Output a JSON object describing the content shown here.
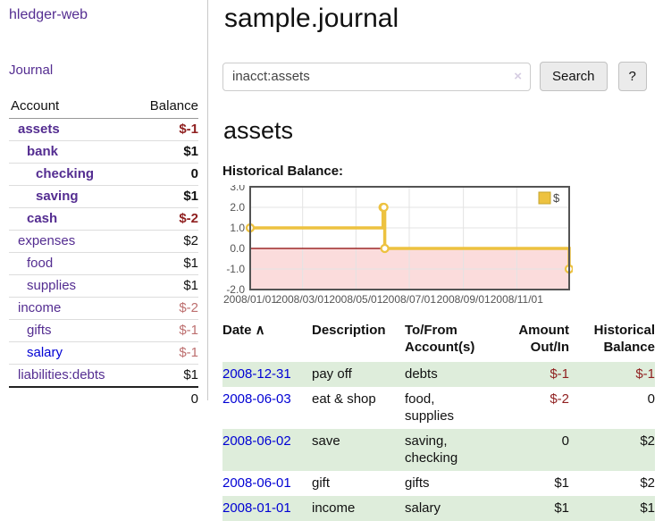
{
  "app": {
    "title": "hledger-web",
    "nav_journal": "Journal"
  },
  "colors": {
    "accent_purple": "#542d91",
    "link_blue": "#0000d4",
    "negative_strong": "#8f1f1f",
    "negative_soft": "#bd6f6f",
    "row_shade_green": "#deeddb",
    "series_yellow": "#edc240",
    "legend_swatch_border": "#c5a42e",
    "negative_region_pink": "#fbdcdc",
    "zero_line": "#8b0000",
    "chart_frame": "#545454",
    "grid_line": "#e3e3e3",
    "tick_text": "#545454"
  },
  "sidebar": {
    "headers": {
      "account": "Account",
      "balance": "Balance"
    },
    "accounts": [
      {
        "label": "assets",
        "level": 1,
        "bold": true,
        "link_color": "purple",
        "balance": "$-1",
        "balance_class": "neg-strong"
      },
      {
        "label": "bank",
        "level": 2,
        "bold": true,
        "link_color": "purple",
        "balance": "$1",
        "balance_class": "pos"
      },
      {
        "label": "checking",
        "level": 3,
        "bold": true,
        "link_color": "purple",
        "balance": "0",
        "balance_class": "pos"
      },
      {
        "label": "saving",
        "level": 3,
        "bold": true,
        "link_color": "purple",
        "balance": "$1",
        "balance_class": "pos"
      },
      {
        "label": "cash",
        "level": 2,
        "bold": true,
        "link_color": "purple",
        "balance": "$-2",
        "balance_class": "neg-strong"
      },
      {
        "label": "expenses",
        "level": 1,
        "bold": false,
        "link_color": "purple",
        "balance": "$2",
        "balance_class": "pos"
      },
      {
        "label": "food",
        "level": 2,
        "bold": false,
        "link_color": "purple",
        "balance": "$1",
        "balance_class": "pos"
      },
      {
        "label": "supplies",
        "level": 2,
        "bold": false,
        "link_color": "purple",
        "balance": "$1",
        "balance_class": "pos"
      },
      {
        "label": "income",
        "level": 1,
        "bold": false,
        "link_color": "purple",
        "balance": "$-2",
        "balance_class": "neg-soft"
      },
      {
        "label": "gifts",
        "level": 2,
        "bold": false,
        "link_color": "purple",
        "balance": "$-1",
        "balance_class": "neg-soft"
      },
      {
        "label": "salary",
        "level": 2,
        "bold": false,
        "link_color": "blue",
        "balance": "$-1",
        "balance_class": "neg-soft"
      },
      {
        "label": "liabilities:debts",
        "level": 1,
        "bold": false,
        "link_color": "purple",
        "balance": "$1",
        "balance_class": "pos"
      }
    ],
    "total": "0"
  },
  "main": {
    "title": "sample.journal",
    "search": {
      "value": "inacct:assets",
      "clear_icon": "×",
      "button": "Search",
      "help_button": "?"
    },
    "account_heading": "assets",
    "chart_heading": "Historical Balance:"
  },
  "chart_data": {
    "type": "line",
    "title": "Historical Balance:",
    "style": "step-after",
    "series": [
      {
        "name": "$",
        "points": [
          [
            "2008-01-01",
            1
          ],
          [
            "2008-06-01",
            2
          ],
          [
            "2008-06-02",
            2
          ],
          [
            "2008-06-03",
            0
          ],
          [
            "2008-12-31",
            -1
          ]
        ]
      }
    ],
    "x_range": [
      "2008-01-01",
      "2008-12-31"
    ],
    "ylim": [
      -2,
      3
    ],
    "yticks": [
      {
        "v": 3,
        "label": "3.0"
      },
      {
        "v": 2,
        "label": "2.0"
      },
      {
        "v": 1,
        "label": "1.0"
      },
      {
        "v": 0,
        "label": "0.0"
      },
      {
        "v": -1,
        "label": "-1.0"
      },
      {
        "v": -2,
        "label": "-2.0"
      }
    ],
    "xticks": [
      {
        "date": "2008-01-01",
        "label": "2008/01/01"
      },
      {
        "date": "2008-03-01",
        "label": "2008/03/01"
      },
      {
        "date": "2008-05-01",
        "label": "2008/05/01"
      },
      {
        "date": "2008-07-01",
        "label": "2008/07/01"
      },
      {
        "date": "2008-09-01",
        "label": "2008/09/01"
      },
      {
        "date": "2008-11-01",
        "label": "2008/11/01"
      }
    ],
    "grid": true,
    "legend_position": "top-right",
    "negative_region_shaded": true
  },
  "register": {
    "headers": [
      {
        "lines": [
          "Date"
        ],
        "sort_icon": "∧",
        "align": "left"
      },
      {
        "lines": [
          "Description"
        ],
        "align": "left"
      },
      {
        "lines": [
          "To/From",
          "Account(s)"
        ],
        "align": "left"
      },
      {
        "lines": [
          "Amount",
          "Out/In"
        ],
        "align": "right"
      },
      {
        "lines": [
          "Historical",
          "Balance"
        ],
        "align": "right"
      }
    ],
    "rows": [
      {
        "date": "2008-12-31",
        "description": "pay off",
        "accounts": "debts",
        "amount": "$-1",
        "amount_negative": true,
        "balance": "$-1",
        "balance_negative": true,
        "shaded": true
      },
      {
        "date": "2008-06-03",
        "description": "eat & shop",
        "accounts": "food, supplies",
        "amount": "$-2",
        "amount_negative": true,
        "balance": "0",
        "balance_negative": false,
        "shaded": false
      },
      {
        "date": "2008-06-02",
        "description": "save",
        "accounts": "saving, checking",
        "amount": "0",
        "amount_negative": false,
        "balance": "$2",
        "balance_negative": false,
        "shaded": true
      },
      {
        "date": "2008-06-01",
        "description": "gift",
        "accounts": "gifts",
        "amount": "$1",
        "amount_negative": false,
        "balance": "$2",
        "balance_negative": false,
        "shaded": false
      },
      {
        "date": "2008-01-01",
        "description": "income",
        "accounts": "salary",
        "amount": "$1",
        "amount_negative": false,
        "balance": "$1",
        "balance_negative": false,
        "shaded": true
      }
    ]
  }
}
